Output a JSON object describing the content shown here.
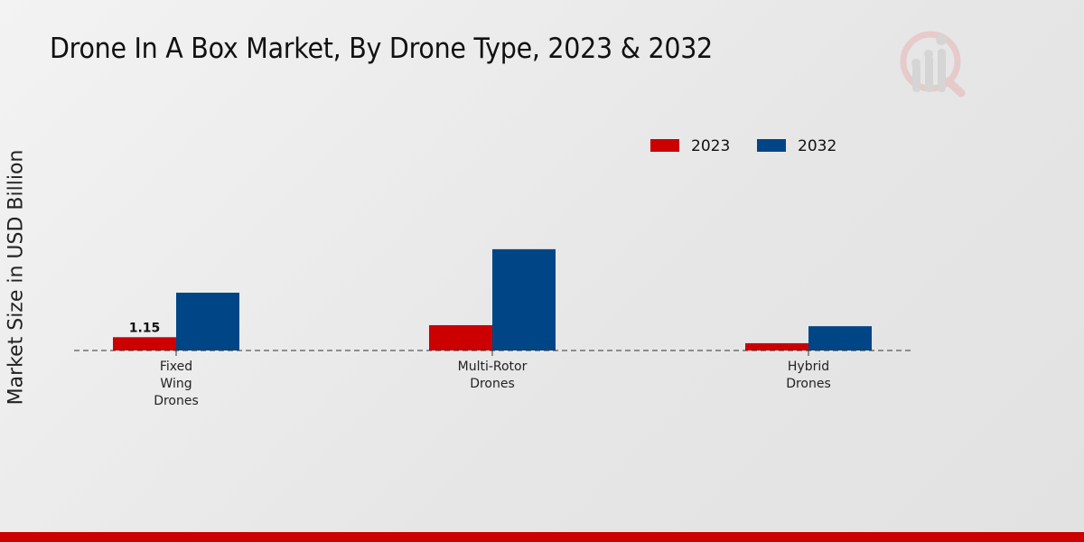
{
  "chart_data": {
    "type": "bar",
    "title": "Drone In A Box Market, By Drone Type, 2023 & 2032",
    "xlabel": "",
    "ylabel": "Market Size in USD Billion",
    "categories": [
      [
        "Fixed",
        "Wing",
        "Drones"
      ],
      [
        "Multi-Rotor",
        "Drones"
      ],
      [
        "Hybrid",
        "Drones"
      ]
    ],
    "series": [
      {
        "name": "2023",
        "color": "#cc0000",
        "values": [
          1.15,
          2.19,
          0.63
        ]
      },
      {
        "name": "2032",
        "color": "#004687",
        "values": [
          5.0,
          8.76,
          2.1
        ]
      }
    ],
    "data_labels": [
      {
        "series": 0,
        "index": 0,
        "text": "1.15"
      }
    ],
    "legend_position": "top-right",
    "grid": false
  }
}
